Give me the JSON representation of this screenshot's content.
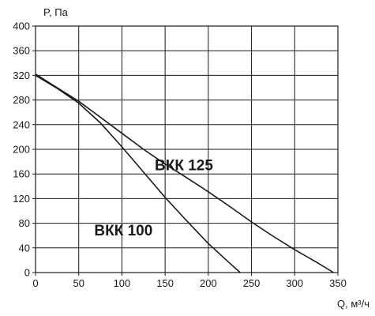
{
  "chart_data": {
    "type": "line",
    "title": "",
    "ylabel": "P, Па",
    "xlabel": "Q, м³/ч",
    "xlim": [
      0,
      350
    ],
    "ylim": [
      0,
      400
    ],
    "x_ticks": [
      0,
      50,
      100,
      150,
      200,
      250,
      300,
      350
    ],
    "y_ticks": [
      0,
      40,
      80,
      120,
      160,
      200,
      240,
      280,
      320,
      360,
      400
    ],
    "grid": true,
    "series": [
      {
        "name": "ВКК 125",
        "x": [
          0,
          25,
          50,
          75,
          100,
          125,
          150,
          175,
          200,
          225,
          250,
          275,
          300,
          325,
          345
        ],
        "y": [
          322,
          300,
          278,
          252,
          226,
          200,
          176,
          154,
          131,
          107,
          82,
          59,
          37,
          17,
          0
        ]
      },
      {
        "name": "ВКК 100",
        "x": [
          0,
          25,
          50,
          75,
          100,
          125,
          150,
          175,
          200,
          225,
          237
        ],
        "y": [
          320,
          299,
          275,
          243,
          204,
          163,
          122,
          84,
          47,
          15,
          0
        ]
      }
    ]
  }
}
